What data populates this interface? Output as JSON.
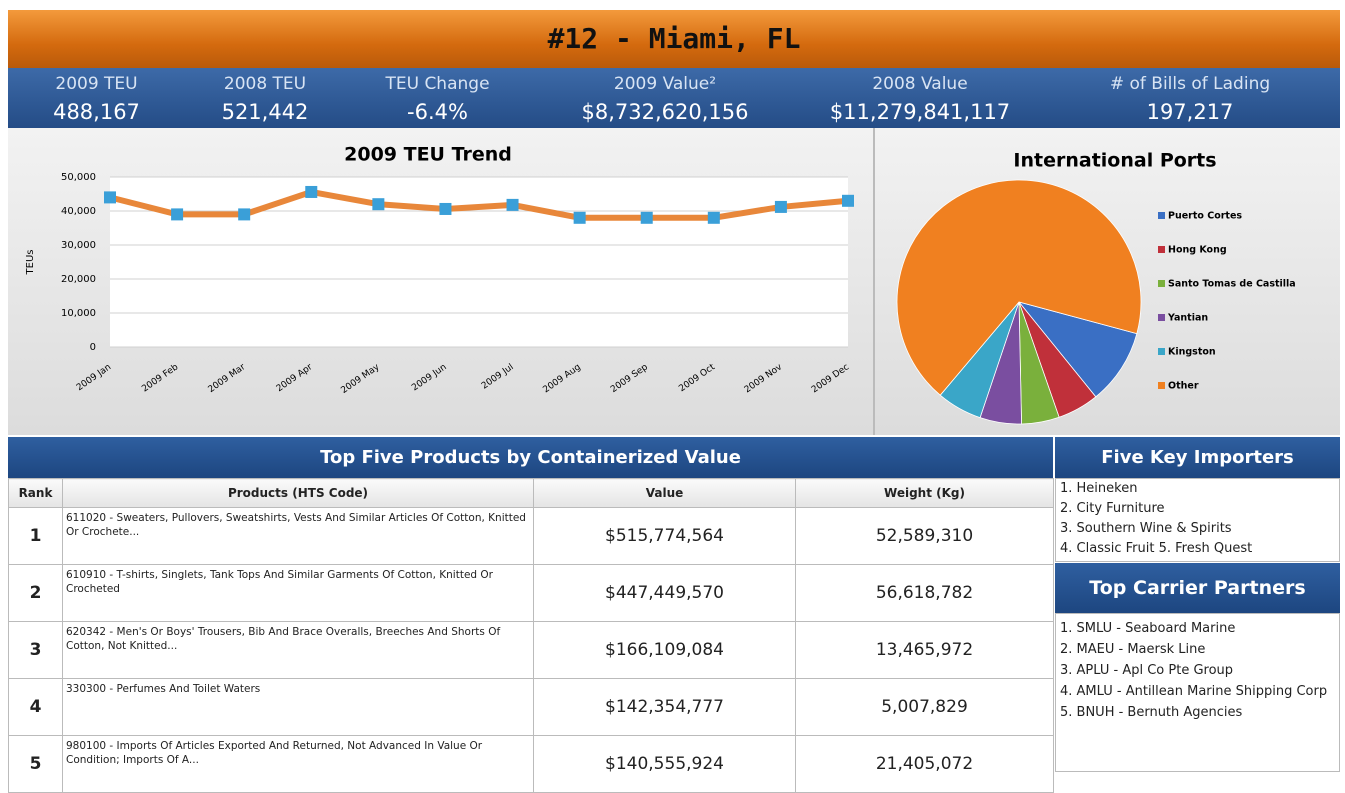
{
  "header": {
    "title": "#12 - Miami, FL"
  },
  "stats": [
    {
      "label": "2009 TEU",
      "value": "488,167"
    },
    {
      "label": "2008 TEU",
      "value": "521,442"
    },
    {
      "label": "TEU Change",
      "value": "-6.4%"
    },
    {
      "label": "2009 Value²",
      "value": "$8,732,620,156"
    },
    {
      "label": "2008 Value",
      "value": "$11,279,841,117"
    },
    {
      "label": "# of Bills of Lading",
      "value": "197,217"
    }
  ],
  "chart_data": [
    {
      "type": "line",
      "title": "2009 TEU Trend",
      "ylabel": "TEUs",
      "categories": [
        "2009 Jan",
        "2009 Feb",
        "2009 Mar",
        "2009 Apr",
        "2009 May",
        "2009 Jun",
        "2009 Jul",
        "2009 Aug",
        "2009 Sep",
        "2009 Oct",
        "2009 Nov",
        "2009 Dec"
      ],
      "values": [
        44000,
        39000,
        39000,
        45600,
        42000,
        40600,
        41800,
        38000,
        38000,
        38000,
        41200,
        43000
      ],
      "color": "#e8873a",
      "marker_color": "#3a9fd8",
      "ylim": [
        0,
        50000
      ],
      "yticks": [
        0,
        {
          "value": 10000,
          "label": "10,000"
        },
        {
          "value": 20000,
          "label": "20,000"
        },
        {
          "value": 30000,
          "label": "30,000"
        },
        {
          "value": 40000,
          "label": "40,000"
        },
        {
          "value": 50000,
          "label": "50,000"
        }
      ],
      "grid": true
    },
    {
      "type": "pie",
      "title": "International Ports",
      "categories": [
        "Puerto Cortes",
        "Hong Kong",
        "Santo Tomas de Castilla",
        "Yantian",
        "Kingston",
        "Other"
      ],
      "values": [
        10,
        5.5,
        5,
        5.5,
        6,
        68
      ],
      "colors": [
        "#3a6fc4",
        "#c0303a",
        "#7ab03c",
        "#7a4ea0",
        "#3aa6c8",
        "#f08020"
      ],
      "legend": "right"
    }
  ],
  "products": {
    "title": "Top Five Products by Containerized Value",
    "columns": [
      "Rank",
      "Products (HTS Code)",
      "Value",
      "Weight (Kg)"
    ],
    "rows": [
      [
        "1",
        "611020 - Sweaters, Pullovers, Sweatshirts, Vests And Similar Articles Of Cotton, Knitted Or Crochete...",
        "$515,774,564",
        "52,589,310"
      ],
      [
        "2",
        "610910 - T-shirts, Singlets, Tank Tops And Similar Garments Of Cotton, Knitted Or Crocheted",
        "$447,449,570",
        "56,618,782"
      ],
      [
        "3",
        "620342 - Men's Or Boys' Trousers, Bib And Brace Overalls, Breeches And Shorts Of Cotton, Not Knitted...",
        "$166,109,084",
        "13,465,972"
      ],
      [
        "4",
        "330300 - Perfumes And Toilet Waters",
        "$142,354,777",
        "5,007,829"
      ],
      [
        "5",
        "980100 - Imports Of Articles Exported And Returned, Not Advanced In Value Or Condition; Imports Of A...",
        "$140,555,924",
        "21,405,072"
      ]
    ]
  },
  "importers": {
    "title": "Five Key Importers",
    "items": [
      "1. Heineken",
      "2. City Furniture",
      "3. Southern Wine & Spirits",
      "4. Classic Fruit 5. Fresh Quest"
    ]
  },
  "carriers": {
    "title": "Top Carrier Partners",
    "items": [
      "1. SMLU - Seaboard Marine",
      "2. MAEU - Maersk Line",
      "3. APLU - Apl Co Pte Group",
      "4. AMLU - Antillean Marine Shipping Corp",
      "5. BNUH - Bernuth Agencies"
    ]
  }
}
